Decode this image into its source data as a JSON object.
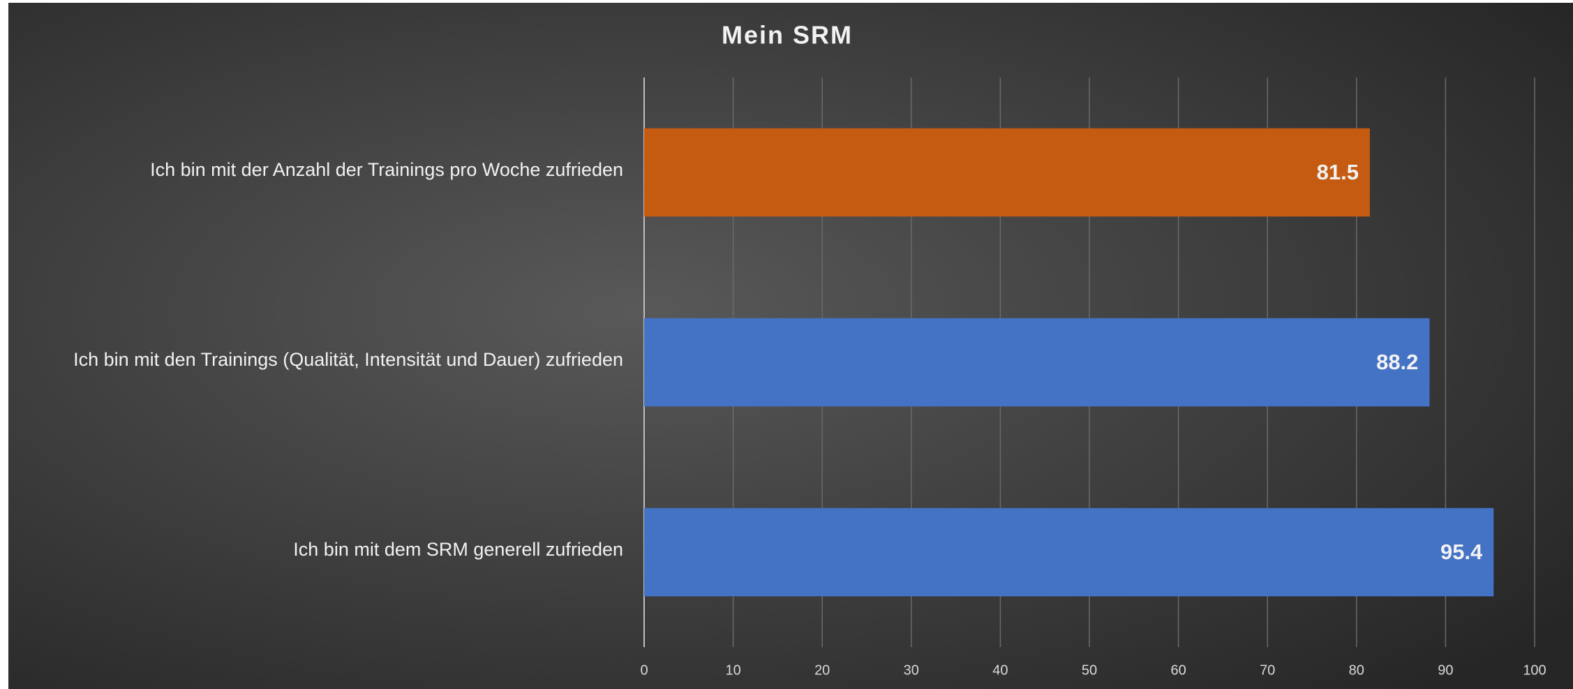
{
  "chart_data": {
    "type": "hbar",
    "title": "Mein SRM",
    "categories": [
      "Ich bin mit der Anzahl der Trainings pro Woche zufrieden",
      "Ich bin mit den Trainings (Qualität, Intensität und Dauer) zufrieden",
      "Ich bin mit dem SRM generell zufrieden"
    ],
    "values": [
      81.5,
      88.2,
      95.4
    ],
    "colors": [
      "#c55a11",
      "#4472c4",
      "#4472c4"
    ],
    "xlim": [
      0,
      100
    ],
    "xticks": [
      0,
      10,
      20,
      30,
      40,
      50,
      60,
      70,
      80,
      90,
      100
    ],
    "grid": true
  }
}
